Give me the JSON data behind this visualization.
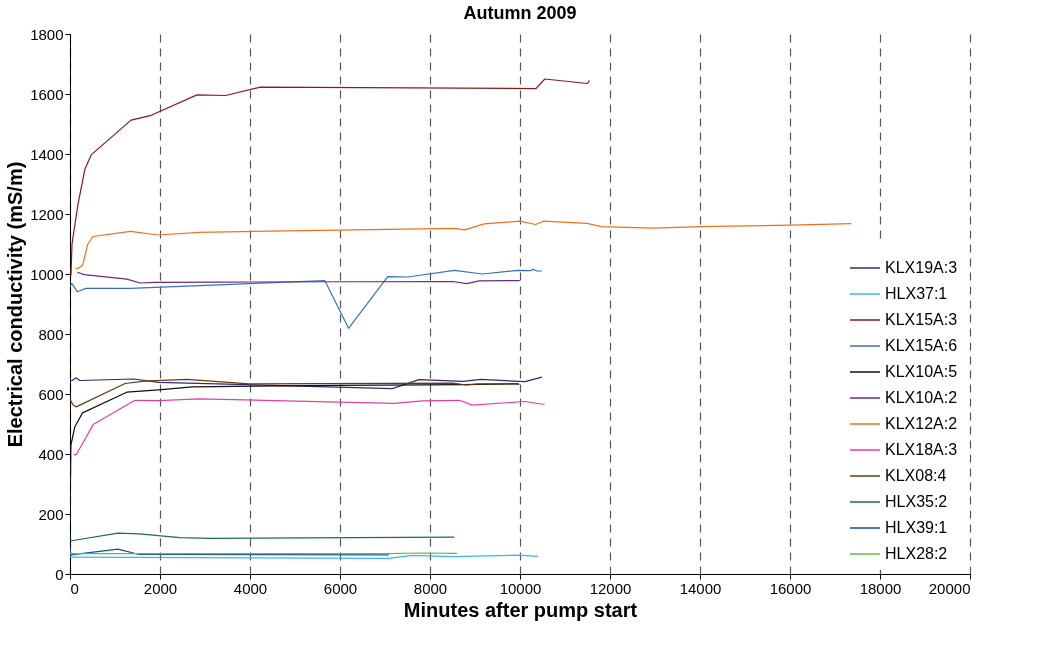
{
  "chart_data": {
    "type": "line",
    "title": "Autumn 2009",
    "xlabel": "Minutes after pump start",
    "ylabel": "Electrical conductivity (mS/m)",
    "xlim": [
      0,
      20000
    ],
    "xticks": [
      0,
      2000,
      4000,
      6000,
      8000,
      10000,
      12000,
      14000,
      16000,
      18000,
      20000
    ],
    "ylim": [
      0,
      1800
    ],
    "yticks": [
      0,
      200,
      400,
      600,
      800,
      1000,
      1200,
      1400,
      1600,
      1800
    ],
    "grid": "x",
    "legend": "bottom right",
    "line_style": "solid",
    "series": [
      {
        "name": "KLX19A:3",
        "color": "#2e2a7a",
        "x": [
          2,
          44,
          137,
          216,
          1419,
          1969,
          7160,
          7755,
          8738,
          9130,
          10112,
          10486
        ],
        "values": [
          643,
          645,
          654,
          645,
          650,
          639,
          618,
          648,
          642,
          649,
          641,
          656
        ]
      },
      {
        "name": "HLX37:1",
        "color": "#33bbee",
        "x": [
          0,
          7085,
          7596,
          8504,
          9995,
          10398
        ],
        "values": [
          56,
          52,
          62,
          58,
          63,
          59
        ]
      },
      {
        "name": "KLX15A:3",
        "color": "#8b1a1a",
        "x": [
          22,
          44,
          176,
          330,
          476,
          1357,
          1806,
          2820,
          3459,
          4230,
          10354,
          10552,
          11500,
          11544
        ],
        "values": [
          996,
          1100,
          1231,
          1349,
          1398,
          1513,
          1529,
          1597,
          1595,
          1623,
          1618,
          1650,
          1635,
          1645
        ]
      },
      {
        "name": "KLX15A:6",
        "color": "#3a6fbf",
        "x": [
          0,
          44,
          161,
          357,
          1344,
          5662,
          6190,
          7061,
          7512,
          8539,
          9164,
          9958,
          10244,
          10288,
          10376,
          10486
        ],
        "values": [
          959,
          968,
          941,
          952,
          952,
          978,
          819,
          991,
          990,
          1012,
          1000,
          1012,
          1011,
          1016,
          1010,
          1010
        ]
      },
      {
        "name": "KLX10A:5",
        "color": "#111111",
        "x": [
          0,
          20,
          106,
          278,
          1262,
          1969,
          2718,
          5983,
          8768,
          9958,
          9980
        ],
        "values": [
          182,
          430,
          490,
          537,
          606,
          614,
          624,
          629,
          631,
          634,
          631
        ]
      },
      {
        "name": "KLX10A:2",
        "color": "#6a2a80",
        "x": [
          161,
          317,
          1262,
          1564,
          1895,
          3305,
          8504,
          8812,
          9090,
          9995
        ],
        "values": [
          1006,
          998,
          983,
          970,
          972,
          973,
          975,
          968,
          977,
          978
        ]
      },
      {
        "name": "KLX12A:2",
        "color": "#f07020",
        "x": [
          121,
          176,
          278,
          397,
          507,
          1344,
          1961,
          2875,
          8539,
          8768,
          9208,
          9995,
          10350,
          10522,
          11491,
          11808,
          12954,
          14011,
          16016,
          17360
        ],
        "values": [
          1020,
          1018,
          1029,
          1100,
          1125,
          1142,
          1130,
          1139,
          1152,
          1147,
          1167,
          1176,
          1165,
          1176,
          1169,
          1158,
          1153,
          1158,
          1163,
          1168
        ]
      },
      {
        "name": "KLX18A:3",
        "color": "#e8409a",
        "x": [
          82,
          145,
          515,
          1443,
          1969,
          2875,
          5983,
          7204,
          7832,
          8658,
          8933,
          10112,
          10546
        ],
        "values": [
          397,
          399,
          498,
          579,
          578,
          584,
          573,
          569,
          577,
          579,
          563,
          575,
          565
        ]
      },
      {
        "name": "KLX08:4",
        "color": "#6b3a0a",
        "x": [
          0,
          66,
          137,
          1223,
          1652,
          2600,
          3976,
          8504,
          8812,
          9054,
          9958
        ],
        "values": [
          582,
          564,
          557,
          635,
          643,
          649,
          634,
          636,
          630,
          634,
          634
        ]
      },
      {
        "name": "HLX35:2",
        "color": "#1a7040",
        "x": [
          0,
          1066,
          1538,
          2443,
          3150,
          8539
        ],
        "values": [
          110,
          136,
          134,
          121,
          119,
          123
        ]
      },
      {
        "name": "HLX39:1",
        "color": "#1050a0",
        "x": [
          0,
          20,
          1066,
          1538,
          7085
        ],
        "values": [
          87,
          64,
          83,
          65,
          64
        ]
      },
      {
        "name": "HLX28:2",
        "color": "#6ab840",
        "x": [
          0,
          7000,
          7800,
          8600
        ],
        "values": [
          68,
          68,
          70,
          69
        ]
      }
    ]
  }
}
